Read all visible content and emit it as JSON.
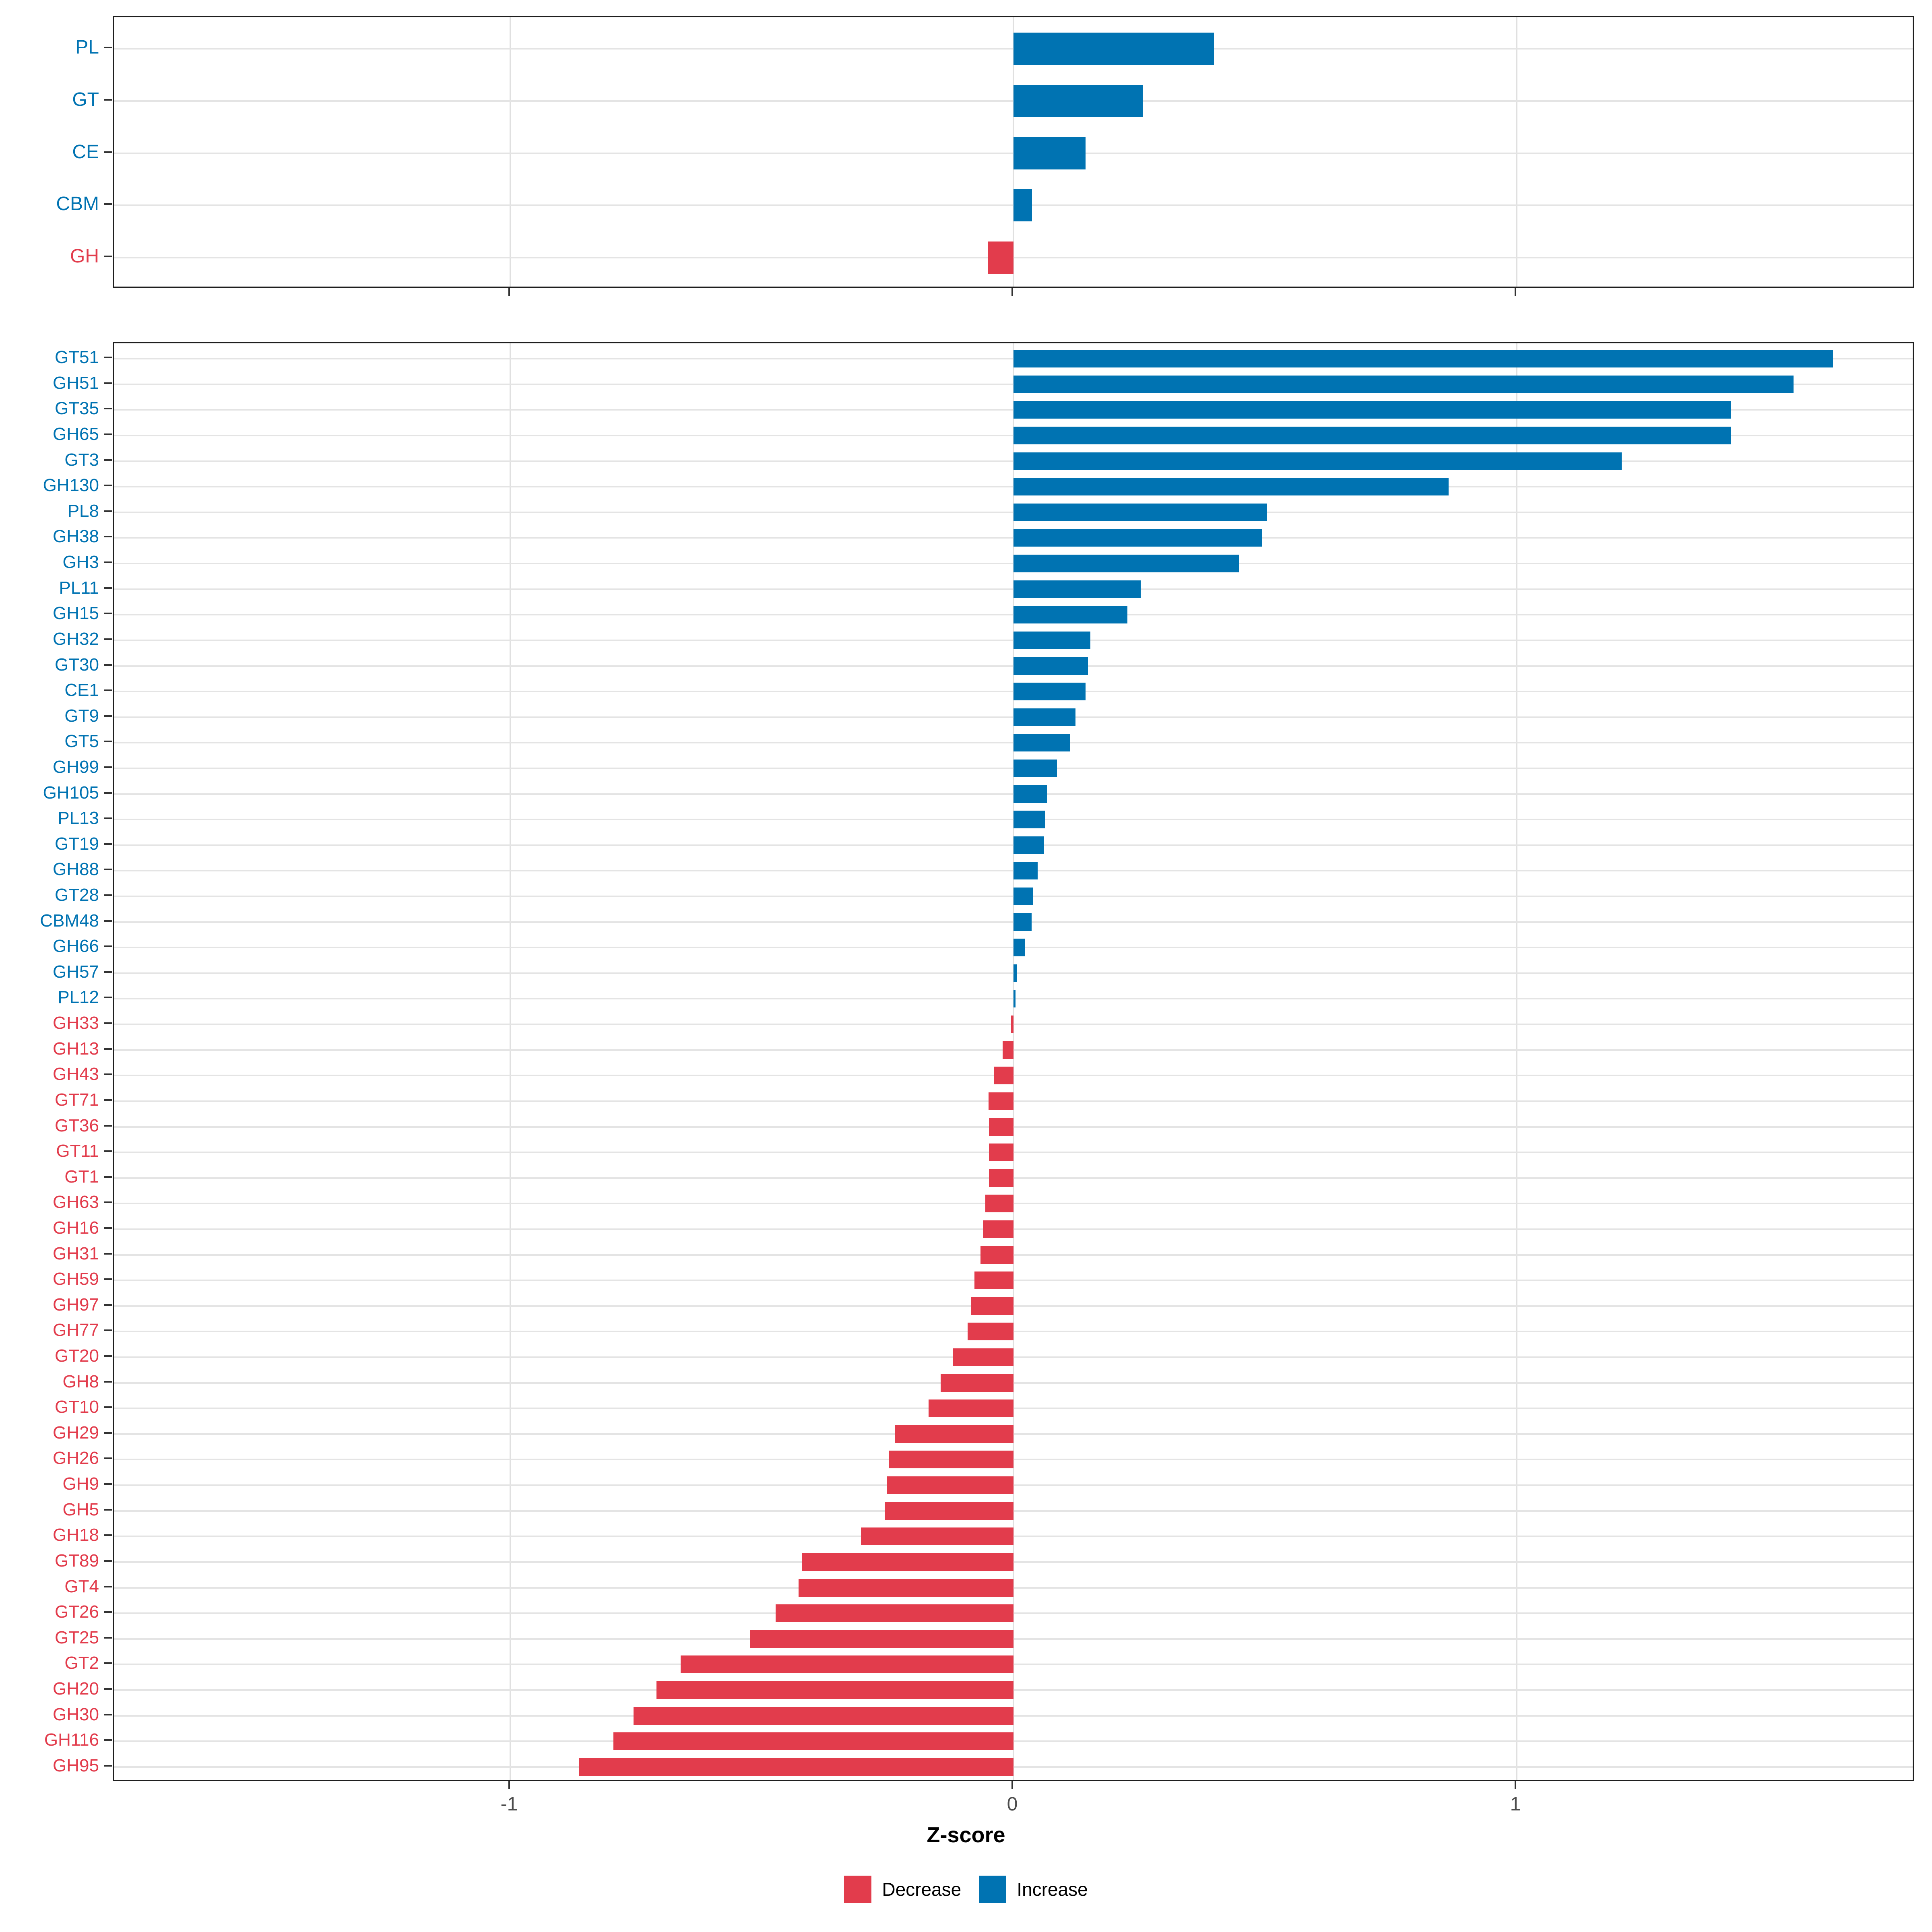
{
  "chart_data": {
    "type": "bar",
    "orientation": "horizontal",
    "title": "",
    "xlabel": "Z-score",
    "ylabel": "",
    "x_ticks": [
      "-1",
      "0",
      "1"
    ],
    "x_tick_values": [
      -1,
      0,
      1
    ],
    "xlim": [
      -1.79,
      1.79
    ],
    "grid": true,
    "legend_position": "bottom",
    "colors": {
      "increase": "#0073B2",
      "decrease": "#E23C4C"
    },
    "legend": [
      {
        "label": "Decrease",
        "color": "#E23C4C"
      },
      {
        "label": "Increase",
        "color": "#0073B2"
      }
    ],
    "panels": [
      {
        "name": "classes",
        "categories": [
          "PL",
          "GT",
          "CE",
          "CBM",
          "GH"
        ],
        "values": [
          0.398,
          0.257,
          0.143,
          0.037,
          -0.051
        ]
      },
      {
        "name": "families",
        "categories": [
          "GT51",
          "GH51",
          "GT35",
          "GH65",
          "GT3",
          "GH130",
          "PL8",
          "GH38",
          "GH3",
          "PL11",
          "GH15",
          "GH32",
          "GT30",
          "CE1",
          "GT9",
          "GT5",
          "GH99",
          "GH105",
          "PL13",
          "GT19",
          "GH88",
          "GT28",
          "CBM48",
          "GH66",
          "GH57",
          "PL12",
          "GH33",
          "GH13",
          "GH43",
          "GT71",
          "GT36",
          "GT11",
          "GT1",
          "GH63",
          "GH16",
          "GH31",
          "GH59",
          "GH97",
          "GH77",
          "GT20",
          "GH8",
          "GT10",
          "GH29",
          "GH26",
          "GH9",
          "GH5",
          "GH18",
          "GT89",
          "GT4",
          "GT26",
          "GT25",
          "GT2",
          "GH20",
          "GH30",
          "GH116",
          "GH95"
        ],
        "values": [
          1.629,
          1.55,
          1.426,
          1.426,
          1.209,
          0.865,
          0.504,
          0.494,
          0.449,
          0.253,
          0.226,
          0.153,
          0.148,
          0.143,
          0.123,
          0.112,
          0.086,
          0.066,
          0.063,
          0.061,
          0.048,
          0.039,
          0.036,
          0.023,
          0.007,
          0.004,
          -0.005,
          -0.022,
          -0.039,
          -0.05,
          -0.049,
          -0.049,
          -0.049,
          -0.056,
          -0.061,
          -0.066,
          -0.078,
          -0.085,
          -0.091,
          -0.12,
          -0.145,
          -0.169,
          -0.235,
          -0.248,
          -0.251,
          -0.256,
          -0.303,
          -0.421,
          -0.427,
          -0.473,
          -0.523,
          -0.662,
          -0.71,
          -0.755,
          -0.795,
          -0.863
        ]
      }
    ]
  },
  "layout_note_values_are_data_not_layout": "all numbers above are read from the rendered chart"
}
